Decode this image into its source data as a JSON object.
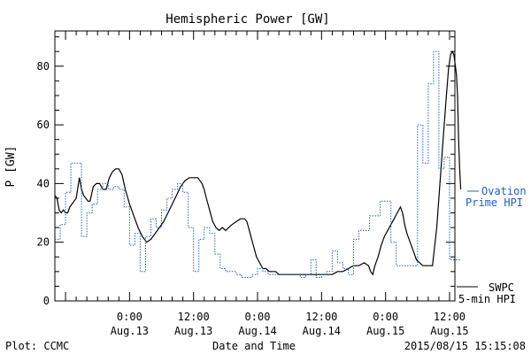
{
  "chart_data": {
    "type": "line",
    "title": "Hemispheric Power [GW]",
    "xlabel": "Date and Time",
    "ylabel": "P [GW]",
    "xlim": [
      -7,
      30.5
    ],
    "ylim": [
      0,
      92
    ],
    "x_unit": "hours since 2015/08/13 00:00 UT",
    "x_ticks": [
      {
        "x": 0,
        "label": [
          "0:00",
          "Aug.13"
        ]
      },
      {
        "x": 6,
        "label": [
          "12:00",
          "Aug.13"
        ]
      },
      {
        "x": 12,
        "label": [
          "0:00",
          "Aug.14"
        ]
      },
      {
        "x": 18,
        "label": [
          "12:00",
          "Aug.14"
        ]
      },
      {
        "x": 24,
        "label": [
          "0:00",
          "Aug.15"
        ]
      },
      {
        "x": 30,
        "label": [
          "12:00",
          "Aug.15"
        ]
      }
    ],
    "y_ticks": [
      0,
      20,
      40,
      60,
      80
    ],
    "series": [
      {
        "name": "SWPC 5-min HPI",
        "label_lines": [
          "SWPC",
          "5-min HPI"
        ],
        "color": "#000000",
        "style": "solid",
        "points": [
          [
            -7.0,
            36
          ],
          [
            -6.8,
            35
          ],
          [
            -6.6,
            31
          ],
          [
            -6.4,
            30
          ],
          [
            -6.2,
            31
          ],
          [
            -6.0,
            30
          ],
          [
            -5.8,
            30
          ],
          [
            -5.6,
            32
          ],
          [
            -5.4,
            33
          ],
          [
            -5.2,
            34
          ],
          [
            -5.0,
            35
          ],
          [
            -4.7,
            42
          ],
          [
            -4.5,
            38
          ],
          [
            -4.3,
            36
          ],
          [
            -4.1,
            35
          ],
          [
            -3.9,
            34
          ],
          [
            -3.7,
            34
          ],
          [
            -3.4,
            39
          ],
          [
            -3.1,
            40
          ],
          [
            -2.8,
            40
          ],
          [
            -2.5,
            38
          ],
          [
            -2.2,
            38
          ],
          [
            -1.9,
            42
          ],
          [
            -1.6,
            44
          ],
          [
            -1.3,
            45
          ],
          [
            -1.0,
            45
          ],
          [
            -0.7,
            43
          ],
          [
            -0.4,
            38
          ],
          [
            0.0,
            33
          ],
          [
            0.4,
            29
          ],
          [
            0.8,
            25
          ],
          [
            1.2,
            22
          ],
          [
            1.6,
            20
          ],
          [
            2.0,
            21
          ],
          [
            2.4,
            23
          ],
          [
            2.8,
            25
          ],
          [
            3.2,
            27
          ],
          [
            3.6,
            30
          ],
          [
            4.0,
            33
          ],
          [
            4.4,
            36
          ],
          [
            4.8,
            39
          ],
          [
            5.2,
            41
          ],
          [
            5.6,
            42
          ],
          [
            6.0,
            42
          ],
          [
            6.4,
            42
          ],
          [
            6.8,
            40
          ],
          [
            7.0,
            38
          ],
          [
            7.2,
            35
          ],
          [
            7.5,
            31
          ],
          [
            7.8,
            27
          ],
          [
            8.1,
            25
          ],
          [
            8.4,
            24
          ],
          [
            8.7,
            25
          ],
          [
            9.0,
            24
          ],
          [
            9.3,
            25
          ],
          [
            9.6,
            26
          ],
          [
            10.0,
            27
          ],
          [
            10.4,
            28
          ],
          [
            10.8,
            28
          ],
          [
            11.0,
            27
          ],
          [
            11.3,
            23
          ],
          [
            11.6,
            19
          ],
          [
            11.9,
            15
          ],
          [
            12.2,
            13
          ],
          [
            12.5,
            11
          ],
          [
            12.8,
            11
          ],
          [
            13.1,
            10
          ],
          [
            13.4,
            10
          ],
          [
            13.7,
            10
          ],
          [
            14.0,
            9
          ],
          [
            14.5,
            9
          ],
          [
            15.0,
            9
          ],
          [
            15.5,
            9
          ],
          [
            16.0,
            9
          ],
          [
            16.5,
            9
          ],
          [
            17.0,
            9
          ],
          [
            17.5,
            9
          ],
          [
            18.0,
            9
          ],
          [
            18.5,
            9
          ],
          [
            19.0,
            9
          ],
          [
            19.5,
            10
          ],
          [
            20.0,
            10
          ],
          [
            20.5,
            11
          ],
          [
            21.0,
            12
          ],
          [
            21.5,
            12
          ],
          [
            22.0,
            13
          ],
          [
            22.4,
            12
          ],
          [
            22.6,
            10
          ],
          [
            22.8,
            9
          ],
          [
            23.0,
            12
          ],
          [
            23.3,
            15
          ],
          [
            23.6,
            19
          ],
          [
            23.9,
            22
          ],
          [
            24.2,
            24
          ],
          [
            24.5,
            26
          ],
          [
            24.8,
            28
          ],
          [
            25.1,
            30
          ],
          [
            25.4,
            32
          ],
          [
            25.6,
            30
          ],
          [
            25.8,
            26
          ],
          [
            26.0,
            23
          ],
          [
            26.3,
            20
          ],
          [
            26.6,
            17
          ],
          [
            26.9,
            14
          ],
          [
            27.2,
            13
          ],
          [
            27.5,
            12
          ],
          [
            27.8,
            12
          ],
          [
            28.1,
            12
          ],
          [
            28.4,
            12
          ],
          [
            28.8,
            25
          ],
          [
            29.1,
            40
          ],
          [
            29.4,
            55
          ],
          [
            29.7,
            70
          ],
          [
            29.9,
            79
          ],
          [
            30.1,
            84
          ],
          [
            30.25,
            85
          ],
          [
            30.4,
            84
          ],
          [
            30.55,
            80
          ],
          [
            30.65,
            77
          ],
          [
            30.75,
            70
          ],
          [
            30.85,
            55
          ],
          [
            30.95,
            45
          ],
          [
            31.05,
            38
          ]
        ]
      },
      {
        "name": "Ovation Prime HPI",
        "label_lines": [
          "Ovation",
          "Prime HPI"
        ],
        "color": "#1f5fbf",
        "style": "dotted-step",
        "points": [
          [
            -7.0,
            21
          ],
          [
            -6.5,
            26
          ],
          [
            -6.0,
            37
          ],
          [
            -5.5,
            47
          ],
          [
            -5.0,
            47
          ],
          [
            -4.5,
            22
          ],
          [
            -4.0,
            30
          ],
          [
            -3.5,
            33
          ],
          [
            -3.0,
            38
          ],
          [
            -2.5,
            40
          ],
          [
            -2.0,
            38
          ],
          [
            -1.5,
            39
          ],
          [
            -1.0,
            38
          ],
          [
            -0.5,
            32
          ],
          [
            0.0,
            19
          ],
          [
            0.5,
            23
          ],
          [
            1.0,
            10
          ],
          [
            1.5,
            22
          ],
          [
            2.0,
            28
          ],
          [
            2.5,
            25
          ],
          [
            3.0,
            31
          ],
          [
            3.5,
            35
          ],
          [
            4.0,
            38
          ],
          [
            4.5,
            40
          ],
          [
            5.0,
            37
          ],
          [
            5.5,
            25
          ],
          [
            6.0,
            10
          ],
          [
            6.5,
            21
          ],
          [
            7.0,
            25
          ],
          [
            7.5,
            23
          ],
          [
            8.0,
            16
          ],
          [
            8.5,
            11
          ],
          [
            9.0,
            10
          ],
          [
            9.5,
            10
          ],
          [
            10.0,
            9
          ],
          [
            10.5,
            8
          ],
          [
            11.0,
            8
          ],
          [
            11.5,
            9
          ],
          [
            12.0,
            11
          ],
          [
            12.5,
            10
          ],
          [
            13.0,
            9
          ],
          [
            13.5,
            9
          ],
          [
            14.0,
            9
          ],
          [
            14.5,
            9
          ],
          [
            15.0,
            9
          ],
          [
            15.5,
            9
          ],
          [
            16.0,
            8
          ],
          [
            16.5,
            9
          ],
          [
            17.0,
            14
          ],
          [
            17.5,
            8
          ],
          [
            18.0,
            9
          ],
          [
            18.5,
            10
          ],
          [
            19.0,
            17
          ],
          [
            19.5,
            13
          ],
          [
            20.0,
            11
          ],
          [
            20.5,
            9
          ],
          [
            21.0,
            21
          ],
          [
            21.5,
            24
          ],
          [
            22.0,
            24
          ],
          [
            22.5,
            29
          ],
          [
            23.0,
            29
          ],
          [
            23.5,
            34
          ],
          [
            24.0,
            34
          ],
          [
            24.5,
            20
          ],
          [
            25.0,
            12
          ],
          [
            25.5,
            12
          ],
          [
            26.0,
            12
          ],
          [
            26.5,
            12
          ],
          [
            27.0,
            60
          ],
          [
            27.5,
            47
          ],
          [
            28.0,
            74
          ],
          [
            28.5,
            85
          ],
          [
            29.0,
            45
          ],
          [
            29.5,
            49
          ],
          [
            30.0,
            14
          ],
          [
            30.5,
            14
          ]
        ]
      }
    ]
  },
  "footer": {
    "left": "Plot: CCMC",
    "center": "Date and Time",
    "right": "2015/08/15 15:15:08"
  }
}
